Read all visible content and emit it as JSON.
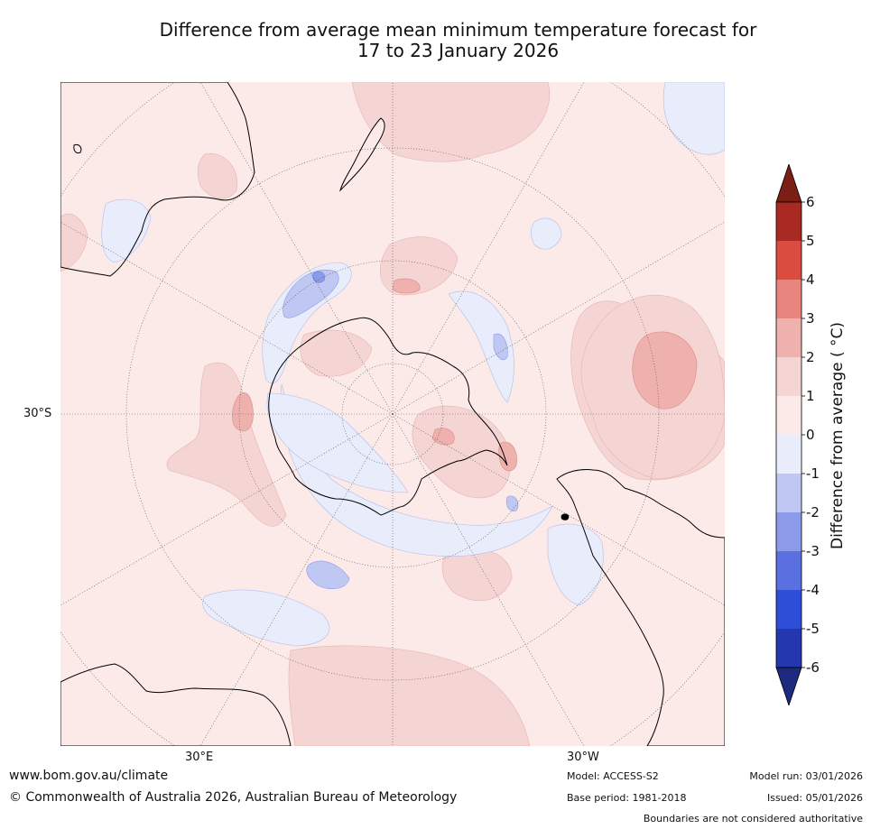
{
  "title": {
    "line1": "Difference from average mean minimum temperature forecast for",
    "line2": "17 to 23 January 2026"
  },
  "map": {
    "projection": "south polar stereographic",
    "lat_label": "30°S",
    "lon_labels": [
      "30°E",
      "30°W"
    ],
    "background_color": "#fbeae8"
  },
  "colorbar": {
    "label": "Difference from average ( °C)",
    "ticks": [
      "6",
      "5",
      "4",
      "3",
      "2",
      "1",
      "0",
      "-1",
      "-2",
      "-3",
      "-4",
      "-5",
      "-6"
    ],
    "colors": {
      "above_6": "#7a1e16",
      "5_to_6": "#a92a22",
      "4_to_5": "#db4c40",
      "3_to_4": "#e8857f",
      "2_to_3": "#eeb1ad",
      "1_to_2": "#f5d5d3",
      "0_to_1": "#fbeae8",
      "m1_to_0": "#e8ecfb",
      "m2_to_m1": "#bfc7f3",
      "m3_to_m2": "#8c9aea",
      "m4_to_m3": "#5a6fe0",
      "m5_to_m4": "#2e4ed8",
      "m6_to_m5": "#2437ae",
      "below_m6": "#1d2a7d"
    }
  },
  "footer": {
    "website": "www.bom.gov.au/climate",
    "copyright": "© Commonwealth of Australia 2026, Australian Bureau of Meteorology",
    "model": "Model: ACCESS-S2",
    "base_period": "Base period: 1981-2018",
    "model_run": "Model run: 03/01/2026",
    "issued": "Issued: 05/01/2026",
    "disclaimer": "Boundaries are not considered authoritative"
  }
}
